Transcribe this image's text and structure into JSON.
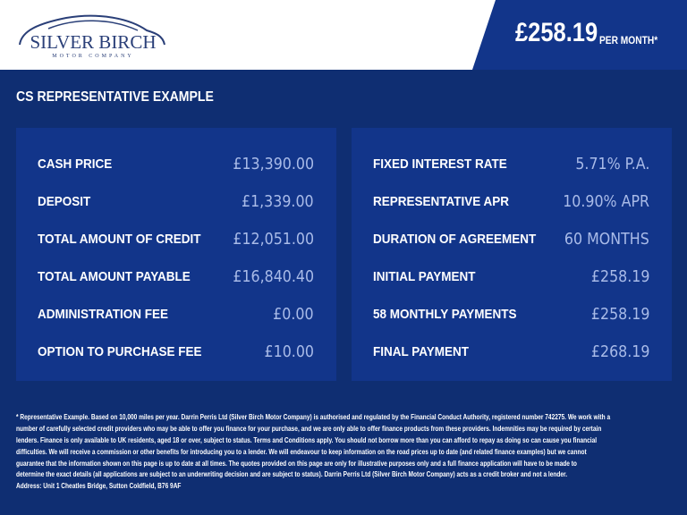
{
  "header": {
    "logo": {
      "name": "SILVER BIRCH",
      "tagline": "MOTOR COMPANY"
    },
    "price": "£258.19",
    "per_month": "PER MONTH*"
  },
  "title": "CS REPRESENTATIVE EXAMPLE",
  "colors": {
    "background": "#0f2e72",
    "panel": "#12358a",
    "value": "#a9bbe8",
    "header": "#ffffff"
  },
  "left_panel": [
    {
      "label": "CASH PRICE",
      "value": "£13,390.00"
    },
    {
      "label": "DEPOSIT",
      "value": "£1,339.00"
    },
    {
      "label": "TOTAL AMOUNT OF CREDIT",
      "value": "£12,051.00"
    },
    {
      "label": "TOTAL AMOUNT PAYABLE",
      "value": "£16,840.40"
    },
    {
      "label": "ADMINISTRATION FEE",
      "value": "£0.00"
    },
    {
      "label": "OPTION TO PURCHASE FEE",
      "value": "£10.00"
    }
  ],
  "right_panel": [
    {
      "label": "FIXED INTEREST RATE",
      "value": "5.71% P.A."
    },
    {
      "label": "REPRESENTATIVE APR",
      "value": "10.90% APR"
    },
    {
      "label": "DURATION OF AGREEMENT",
      "value": "60 MONTHS"
    },
    {
      "label": "INITIAL PAYMENT",
      "value": "£258.19"
    },
    {
      "label": "58 MONTHLY PAYMENTS",
      "value": "£258.19"
    },
    {
      "label": "FINAL PAYMENT",
      "value": "£268.19"
    }
  ],
  "footer": [
    "* Representative Example. Based on 10,000 miles per year. Darrin Perris Ltd (Silver Birch Motor Company) is authorised and regulated by the Financial Conduct Authority, registered number 742275. We work with a",
    "number of carefully selected credit providers who may be able to offer you finance for your purchase, and we are only able to offer finance products from these providers. Indemnities may be required by certain",
    "lenders. Finance is only available to UK residents, aged 18 or over, subject to status. Terms and Conditions apply. You should not borrow more than you can afford to repay as doing so can cause you financial",
    "difficulties. We will receive a commission or other benefits for introducing you to a lender. We will endeavour to keep information on the road prices up to date (and related finance examples) but we cannot",
    "guarantee that the information shown on this page is up to date at all times. The quotes provided on this page are only for illustrative purposes only and a full finance application will have to be made to",
    "determine the exact details (all applications are subject to an underwriting decision and are subject to status). Darrin Perris Ltd (Silver Birch Motor Company) acts as a credit broker and not a lender.",
    "Address: Unit 1 Cheatles Bridge, Sutton Coldfield, B76 9AF"
  ]
}
